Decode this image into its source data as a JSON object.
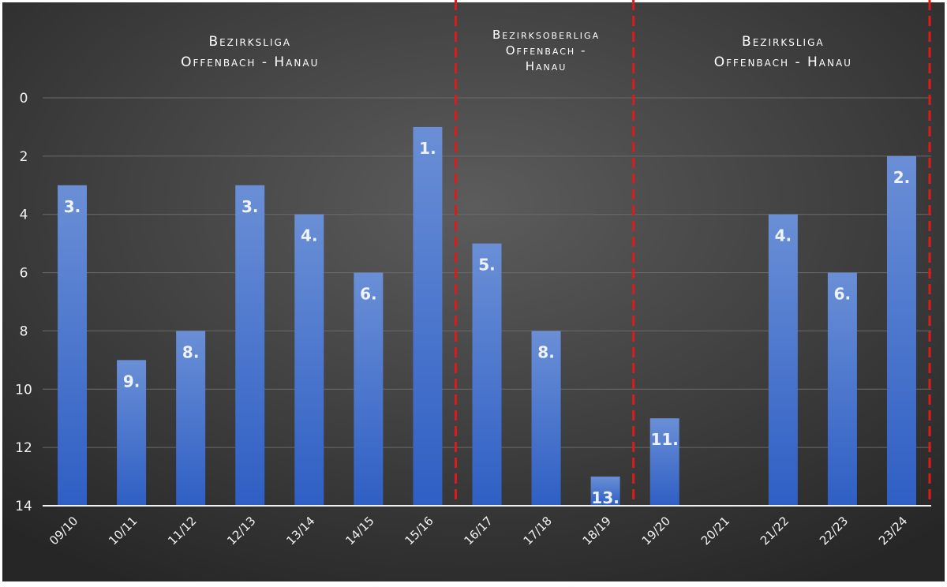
{
  "chart_data": {
    "type": "bar",
    "categories": [
      "09/10",
      "10/11",
      "11/12",
      "12/13",
      "13/14",
      "14/15",
      "15/16",
      "16/17",
      "17/18",
      "18/19",
      "19/20",
      "20/21",
      "21/22",
      "22/23",
      "23/24"
    ],
    "values": [
      3,
      9,
      8,
      3,
      4,
      6,
      1,
      5,
      8,
      13,
      11,
      null,
      4,
      6,
      2
    ],
    "data_labels": [
      "3.",
      "9.",
      "8.",
      "3.",
      "4.",
      "6.",
      "1.",
      "5.",
      "8.",
      "13.",
      "11.",
      "",
      "4.",
      "6.",
      "2."
    ],
    "ylim": [
      0,
      14
    ],
    "y_inverted": true,
    "yticks": [
      "0",
      "2",
      "4",
      "6",
      "8",
      "10",
      "12",
      "14"
    ],
    "grid": true,
    "annotations": [
      {
        "lines": [
          "Bezirksliga",
          "Offenbach - Hanau"
        ],
        "center_between": [
          0,
          6
        ]
      },
      {
        "lines": [
          "Bezirksoberliga",
          "Offenbach -",
          "Hanau"
        ],
        "center_between": [
          7,
          9
        ]
      },
      {
        "lines": [
          "Bezirksliga",
          "Offenbach - Hanau"
        ],
        "center_between": [
          10,
          14
        ]
      }
    ],
    "separators_after": [
      6,
      9,
      14
    ],
    "colors": {
      "bar_top": "#6a8fd6",
      "bar_bottom": "#2f5fc4",
      "separator": "#e0191b",
      "background_light": "#5a5a5a",
      "background_dark": "#262626"
    }
  }
}
